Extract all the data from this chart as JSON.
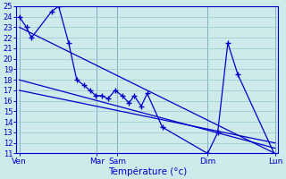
{
  "title": "Température (°c)",
  "bg_color": "#ceeaea",
  "line_color": "#0000cc",
  "grid_color": "#9ecece",
  "ylim": [
    11,
    25
  ],
  "yticks": [
    11,
    12,
    13,
    14,
    15,
    16,
    17,
    18,
    19,
    20,
    21,
    22,
    23,
    24,
    25
  ],
  "xlim": [
    0,
    26
  ],
  "xtick_positions": [
    0.3,
    8.0,
    10.0,
    19.0,
    25.7
  ],
  "xtick_labels": [
    "Ven",
    "Mar",
    "Sam",
    "Dim",
    "Lun"
  ],
  "vline_positions": [
    0.3,
    8.0,
    10.0,
    19.0,
    25.7
  ],
  "series1_x": [
    0.3,
    1.0,
    1.5,
    3.5,
    4.2,
    5.2,
    6.0,
    6.7,
    7.3,
    7.9,
    8.5,
    9.1,
    9.8,
    10.5,
    11.2,
    11.7,
    12.4,
    13.0,
    14.5,
    19.0,
    20.0,
    21.0,
    22.0,
    25.7
  ],
  "series1_y": [
    24,
    23,
    22,
    24.5,
    25,
    21.5,
    18,
    17.5,
    17.0,
    16.5,
    16.5,
    16.2,
    17.0,
    16.5,
    15.8,
    16.5,
    15.5,
    16.7,
    13.5,
    11.0,
    13.0,
    21.5,
    18.5,
    10.8
  ],
  "trend1_x": [
    0.3,
    25.7
  ],
  "trend1_y": [
    23.0,
    11.0
  ],
  "trend2_x": [
    0.3,
    25.7
  ],
  "trend2_y": [
    18.0,
    11.5
  ],
  "trend3_x": [
    0.3,
    25.7
  ],
  "trend3_y": [
    17.0,
    12.0
  ]
}
